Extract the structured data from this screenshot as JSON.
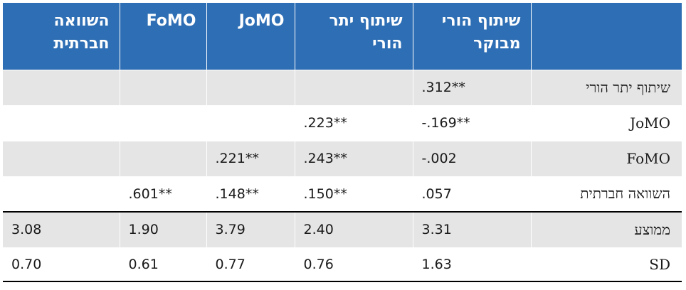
{
  "header": {
    "corner": "",
    "col1": "שיתוף הורי מבוקר",
    "col2": "שיתוף יתר הורי",
    "col3": "JoMO",
    "col4": "FoMO",
    "col5": "השוואה חברתית"
  },
  "rows": [
    {
      "label": "שיתוף יתר הורי",
      "c1": "**312.",
      "c2": "",
      "c3": "",
      "c4": "",
      "c5": ""
    },
    {
      "label": "JoMO",
      "c1": "**169.-",
      "c2": "**223.",
      "c3": "",
      "c4": "",
      "c5": ""
    },
    {
      "label": "FoMO",
      "c1": "002.-",
      "c2": "**243.",
      "c3": "**221.",
      "c4": "",
      "c5": ""
    },
    {
      "label": "השוואה חברתית",
      "c1": "057.",
      "c2": "**150.",
      "c3": "**148.",
      "c4": "**601.",
      "c5": ""
    },
    {
      "label": "ממוצע",
      "c1": "3.31",
      "c2": "2.40",
      "c3": "3.79",
      "c4": "1.90",
      "c5": "3.08"
    },
    {
      "label": "SD",
      "c1": "1.63",
      "c2": "0.76",
      "c3": "0.77",
      "c4": "0.61",
      "c5": "0.70"
    }
  ],
  "colors": {
    "header_bg": "#2e6eb4",
    "header_text": "#ffffff",
    "shade": "#e5e5e5",
    "rule": "#000000"
  }
}
